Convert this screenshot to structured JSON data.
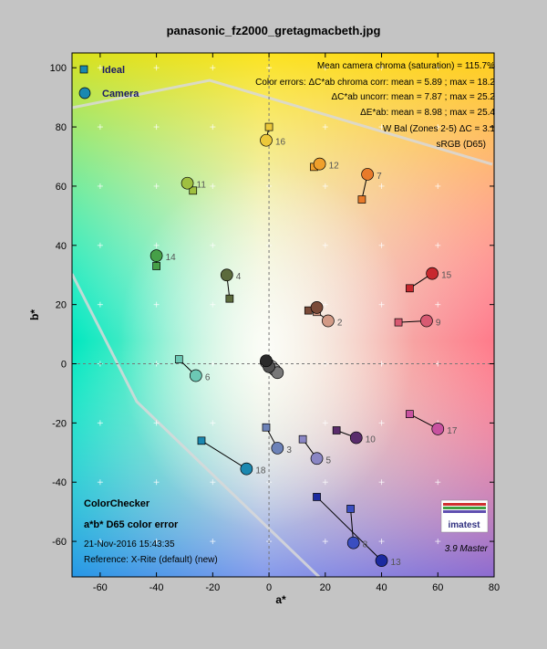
{
  "chart_data": {
    "type": "scatter",
    "title": "panasonic_fz2000_gretagmacbeth.jpg",
    "xlabel": "a*",
    "ylabel": "b*",
    "xlim": [
      -70,
      80
    ],
    "ylim": [
      -72,
      105
    ],
    "xticks": [
      -60,
      -40,
      -20,
      0,
      20,
      40,
      60,
      80
    ],
    "yticks": [
      -60,
      -40,
      -20,
      0,
      20,
      40,
      60,
      80,
      100
    ],
    "legend": {
      "ideal": "Ideal",
      "camera": "Camera",
      "position": "top-left"
    },
    "annotations": [
      "Mean camera chroma (saturation) = 115.7%",
      "Color errors: ΔC*ab chroma corr:  mean = 5.89 ;  max = 18.2",
      "ΔC*ab uncorr:  mean = 7.87 ;  max = 25.2",
      "ΔE*ab:  mean = 8.98 ;  max = 25.4",
      "W Bal (Zones 2-5)  ΔC = 3.1"
    ],
    "gamut_label": "sRGB (D65)",
    "footer": {
      "line1": "ColorChecker",
      "line2": "a*b* D65 color error",
      "line3": "21-Nov-2016 15:43:35",
      "line4": "Reference: X-Rite (default) (new)"
    },
    "logo_text": "imatest",
    "version": "3.9  Master",
    "patches": [
      {
        "id": "1",
        "ideal": [
          14,
          18
        ],
        "camera": [
          17,
          19
        ],
        "color": "#7a4a38",
        "label": ""
      },
      {
        "id": "2",
        "ideal": [
          17,
          17.5
        ],
        "camera": [
          21,
          14.5
        ],
        "color": "#d29a86",
        "label": "2"
      },
      {
        "id": "3",
        "ideal": [
          -1,
          -21.5
        ],
        "camera": [
          3,
          -28.5
        ],
        "color": "#6c82b8",
        "label": "3"
      },
      {
        "id": "4",
        "ideal": [
          -14,
          22
        ],
        "camera": [
          -15,
          30
        ],
        "color": "#5c6b3c",
        "label": "4"
      },
      {
        "id": "5",
        "ideal": [
          12,
          -25.5
        ],
        "camera": [
          17,
          -32
        ],
        "color": "#8a86c4",
        "label": "5"
      },
      {
        "id": "6",
        "ideal": [
          -32,
          1.5
        ],
        "camera": [
          -26,
          -4
        ],
        "color": "#6cc8b4",
        "label": "6"
      },
      {
        "id": "7",
        "ideal": [
          33,
          55.5
        ],
        "camera": [
          35,
          64
        ],
        "color": "#e87a2a",
        "label": "7"
      },
      {
        "id": "8",
        "ideal": [
          29,
          -49
        ],
        "camera": [
          30,
          -60.5
        ],
        "color": "#3a4ec0",
        "label": "8"
      },
      {
        "id": "9",
        "ideal": [
          46,
          14
        ],
        "camera": [
          56,
          14.5
        ],
        "color": "#d85a72",
        "label": "9"
      },
      {
        "id": "10",
        "ideal": [
          24,
          -22.5
        ],
        "camera": [
          31,
          -25
        ],
        "color": "#5a2c6c",
        "label": "10"
      },
      {
        "id": "11",
        "ideal": [
          -27,
          58.5
        ],
        "camera": [
          -29,
          61
        ],
        "color": "#a0c040",
        "label": "11"
      },
      {
        "id": "12",
        "ideal": [
          16,
          66.5
        ],
        "camera": [
          18,
          67.5
        ],
        "color": "#f0a02c",
        "label": "12"
      },
      {
        "id": "13",
        "ideal": [
          17,
          -45
        ],
        "camera": [
          40,
          -66.5
        ],
        "color": "#1c2aa0",
        "label": "13"
      },
      {
        "id": "14",
        "ideal": [
          -40,
          33
        ],
        "camera": [
          -40,
          36.5
        ],
        "color": "#46a048",
        "label": "14"
      },
      {
        "id": "15",
        "ideal": [
          50,
          25.5
        ],
        "camera": [
          58,
          30.5
        ],
        "color": "#c8282e",
        "label": "15"
      },
      {
        "id": "16",
        "ideal": [
          0,
          80
        ],
        "camera": [
          -1,
          75.5
        ],
        "color": "#ecc83a",
        "label": "16"
      },
      {
        "id": "17",
        "ideal": [
          50,
          -17
        ],
        "camera": [
          60,
          -22
        ],
        "color": "#c852a0",
        "label": "17"
      },
      {
        "id": "18",
        "ideal": [
          -24,
          -26
        ],
        "camera": [
          -8,
          -35.5
        ],
        "color": "#1a88b0",
        "label": "18"
      },
      {
        "id": "19",
        "ideal": [
          0,
          0
        ],
        "camera": [
          -1,
          0.5
        ],
        "color": "#f4f4f4",
        "label": ""
      },
      {
        "id": "20",
        "ideal": [
          0,
          0
        ],
        "camera": [
          1,
          -1
        ],
        "color": "#c8c8c8",
        "label": ""
      },
      {
        "id": "21",
        "ideal": [
          0,
          0
        ],
        "camera": [
          2,
          -2
        ],
        "color": "#a0a0a0",
        "label": ""
      },
      {
        "id": "22",
        "ideal": [
          0,
          0
        ],
        "camera": [
          3,
          -3
        ],
        "color": "#787878",
        "label": ""
      },
      {
        "id": "23",
        "ideal": [
          0,
          0
        ],
        "camera": [
          0,
          -1
        ],
        "color": "#505050",
        "label": ""
      },
      {
        "id": "24",
        "ideal": [
          0,
          0
        ],
        "camera": [
          -1,
          1
        ],
        "color": "#2a2a2a",
        "label": ""
      }
    ]
  }
}
